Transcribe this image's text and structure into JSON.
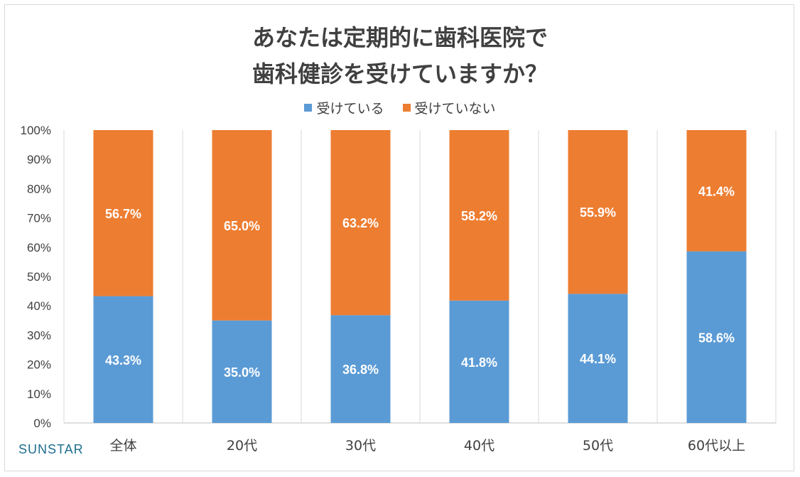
{
  "title_lines": [
    "あなたは定期的に歯科医院で",
    "歯科健診を受けていますか？"
  ],
  "logo_text": "SUNSTAR",
  "colors": {
    "received": "#5b9bd5",
    "not_received": "#ed7d31",
    "grid": "#d9d9d9",
    "axis": "#bfbfbf"
  },
  "chart_data": {
    "type": "bar",
    "stacked": true,
    "percent": true,
    "title": "あなたは定期的に歯科医院で歯科健診を受けていますか？",
    "categories": [
      "全体",
      "20代",
      "30代",
      "40代",
      "50代",
      "60代以上"
    ],
    "series": [
      {
        "name": "受けている",
        "values": [
          43.3,
          35.0,
          36.8,
          41.8,
          44.1,
          58.6
        ],
        "labels": [
          "43.3%",
          "35.0%",
          "36.8%",
          "41.8%",
          "44.1%",
          "58.6%"
        ]
      },
      {
        "name": "受けていない",
        "values": [
          56.7,
          65.0,
          63.2,
          58.2,
          55.9,
          41.4
        ],
        "labels": [
          "56.7%",
          "65.0%",
          "63.2%",
          "58.2%",
          "55.9%",
          "41.4%"
        ]
      }
    ],
    "ylim": [
      0,
      100
    ],
    "yticks": [
      "0%",
      "10%",
      "20%",
      "30%",
      "40%",
      "50%",
      "60%",
      "70%",
      "80%",
      "90%",
      "100%"
    ],
    "legend": "top",
    "grid": "vertical-separators"
  }
}
